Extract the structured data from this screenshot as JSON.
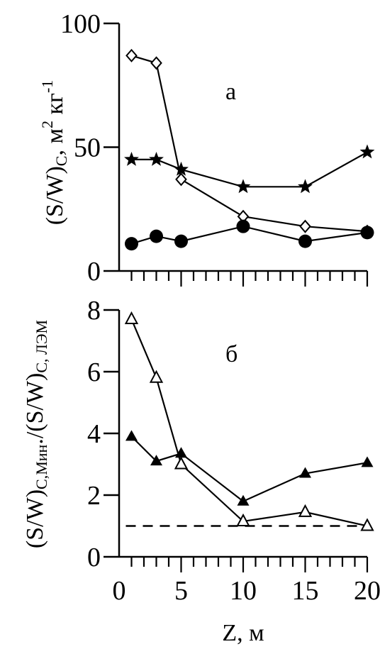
{
  "chart_data": [
    {
      "panel": "a",
      "type": "line",
      "panel_label": "а",
      "ylabel": {
        "main": "(S/W)",
        "sub": "C",
        "unit_pre": ", м",
        "sup1": "2",
        "unit_mid": " кг",
        "sup2": "-1"
      },
      "ylim": [
        0,
        100
      ],
      "xlim": [
        0,
        20
      ],
      "y_ticks": [
        0,
        50,
        100
      ],
      "series": [
        {
          "marker": "open-diamond",
          "color": "#000000",
          "x": [
            1,
            3,
            5,
            10,
            15,
            20
          ],
          "y": [
            87,
            84,
            37,
            22,
            18,
            16
          ]
        },
        {
          "marker": "filled-star",
          "color": "#000000",
          "x": [
            1,
            3,
            5,
            10,
            15,
            20
          ],
          "y": [
            45,
            45,
            41,
            34,
            34,
            48
          ]
        },
        {
          "marker": "filled-circle",
          "color": "#000000",
          "x": [
            1,
            3,
            5,
            10,
            15,
            20
          ],
          "y": [
            11,
            14,
            12,
            18,
            12,
            15.5
          ]
        }
      ]
    },
    {
      "panel": "b",
      "type": "line",
      "panel_label": "б",
      "ylabel": {
        "pre": "(S/W)",
        "sub1": "C,Мин",
        "mid": "./(S/W)",
        "sub2": "C, ЛЭМ"
      },
      "ylim": [
        0,
        8
      ],
      "xlim": [
        0,
        20
      ],
      "y_ticks": [
        0,
        2,
        4,
        6,
        8
      ],
      "x_ticks": [
        0,
        5,
        10,
        15,
        20
      ],
      "xlabel": "Z, м",
      "reference_line": {
        "y": 1,
        "style": "dashed"
      },
      "series": [
        {
          "marker": "open-triangle",
          "color": "#000000",
          "x": [
            1,
            3,
            5,
            10,
            15,
            20
          ],
          "y": [
            7.7,
            5.8,
            3.0,
            1.15,
            1.45,
            1.0
          ]
        },
        {
          "marker": "filled-triangle",
          "color": "#000000",
          "x": [
            1,
            3,
            5,
            10,
            15,
            20
          ],
          "y": [
            3.9,
            3.1,
            3.35,
            1.8,
            2.7,
            3.05
          ]
        }
      ]
    }
  ]
}
